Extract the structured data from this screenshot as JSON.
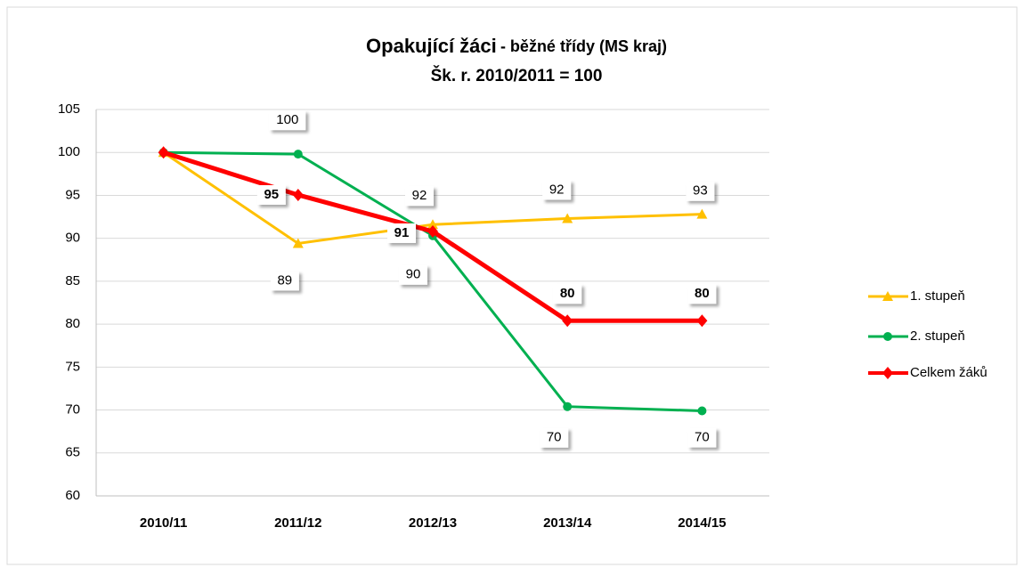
{
  "chart_data": {
    "type": "line",
    "title": "Opakující žáci",
    "title_suffix": "- běžné třídy (MS kraj)",
    "subtitle": "Šk. r.  2010/2011 = 100",
    "categories": [
      "2010/11",
      "2011/12",
      "2012/13",
      "2013/14",
      "2014/15"
    ],
    "ylim": [
      60,
      105
    ],
    "yticks": [
      60,
      65,
      70,
      75,
      80,
      85,
      90,
      95,
      100,
      105
    ],
    "grid": true,
    "legend": "right",
    "series": [
      {
        "name": "1. stupeň",
        "color": "#ffc000",
        "marker": "triangle",
        "values": [
          100,
          89.4,
          91.6,
          92.3,
          92.8
        ],
        "value_labels": [
          null,
          "89",
          "92",
          "92",
          "93"
        ]
      },
      {
        "name": "2. stupeň",
        "color": "#00b050",
        "marker": "circle",
        "values": [
          100,
          99.8,
          90.3,
          70.4,
          69.9
        ],
        "value_labels": [
          null,
          "100",
          "90",
          "70",
          "70"
        ]
      },
      {
        "name": "Celkem žáků",
        "color": "#ff0000",
        "marker": "diamond",
        "values": [
          100,
          95.05,
          90.8,
          80.4,
          80.4
        ],
        "value_labels": [
          null,
          "95",
          "91",
          "80",
          "80"
        ]
      }
    ]
  }
}
